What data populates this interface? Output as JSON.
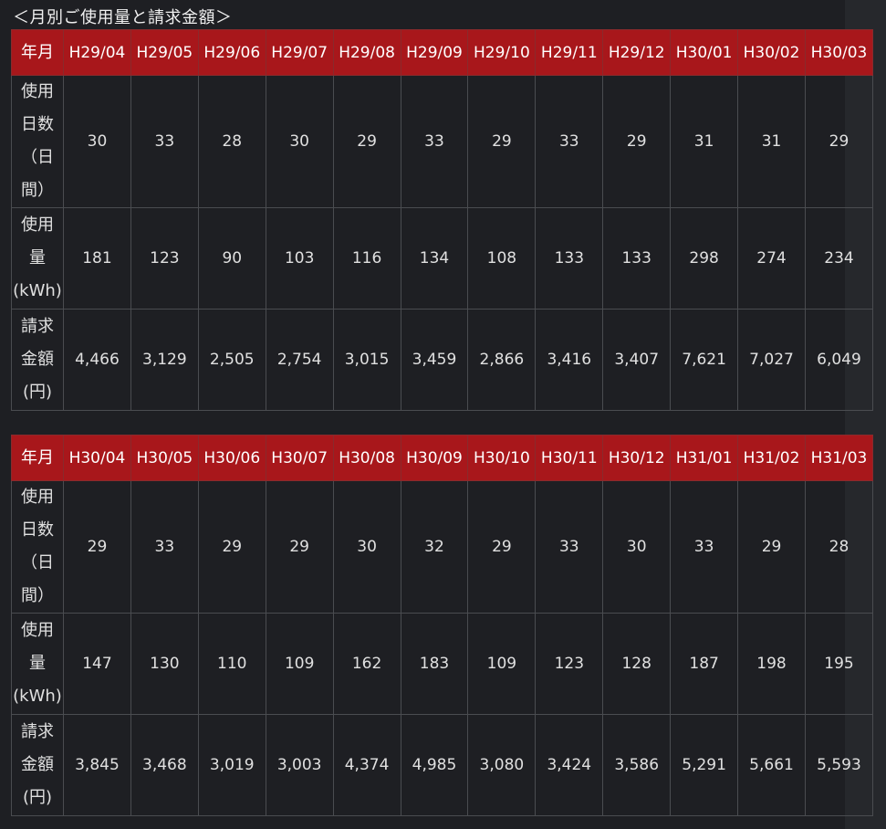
{
  "title": "＜月別ご使用量と請求金額＞",
  "labels": {
    "month": "年月",
    "days": "使用\n日数\n（日\n間）",
    "usage": "使用\n量\n(kWh)",
    "bill": "請求\n金額\n(円)"
  },
  "colors": {
    "header": "#a8171b",
    "background": "#1e1f23"
  },
  "tables": [
    {
      "months": [
        "H29/04",
        "H29/05",
        "H29/06",
        "H29/07",
        "H29/08",
        "H29/09",
        "H29/10",
        "H29/11",
        "H29/12",
        "H30/01",
        "H30/02",
        "H30/03"
      ],
      "days": [
        "30",
        "33",
        "28",
        "30",
        "29",
        "33",
        "29",
        "33",
        "29",
        "31",
        "31",
        "29"
      ],
      "usage": [
        "181",
        "123",
        "90",
        "103",
        "116",
        "134",
        "108",
        "133",
        "133",
        "298",
        "274",
        "234"
      ],
      "bill": [
        "4,466",
        "3,129",
        "2,505",
        "2,754",
        "3,015",
        "3,459",
        "2,866",
        "3,416",
        "3,407",
        "7,621",
        "7,027",
        "6,049"
      ]
    },
    {
      "months": [
        "H30/04",
        "H30/05",
        "H30/06",
        "H30/07",
        "H30/08",
        "H30/09",
        "H30/10",
        "H30/11",
        "H30/12",
        "H31/01",
        "H31/02",
        "H31/03"
      ],
      "days": [
        "29",
        "33",
        "29",
        "29",
        "30",
        "32",
        "29",
        "33",
        "30",
        "33",
        "29",
        "28"
      ],
      "usage": [
        "147",
        "130",
        "110",
        "109",
        "162",
        "183",
        "109",
        "123",
        "128",
        "187",
        "198",
        "195"
      ],
      "bill": [
        "3,845",
        "3,468",
        "3,019",
        "3,003",
        "4,374",
        "4,985",
        "3,080",
        "3,424",
        "3,586",
        "5,291",
        "5,661",
        "5,593"
      ]
    }
  ]
}
